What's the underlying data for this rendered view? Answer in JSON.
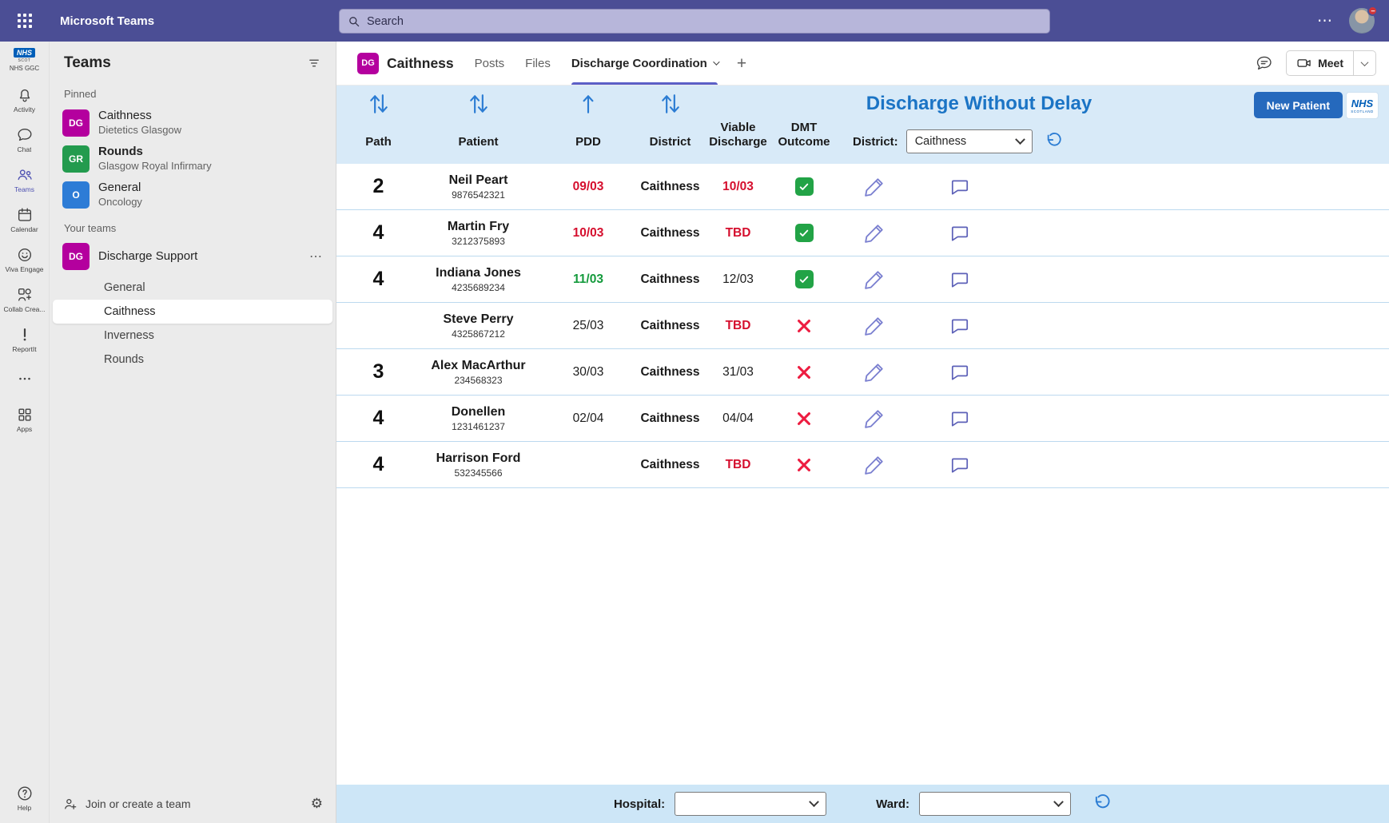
{
  "colors": {
    "teams-purple": "#4b4e95",
    "accent-blue": "#2b7cd3",
    "title-blue": "#1b74c5",
    "nhs-blue": "#005eb8",
    "alert-red": "#d50f2e",
    "ok-green": "#149a3c",
    "check-green": "#22a346",
    "cross-red": "#ed1c40",
    "header-blue": "#d8eaf8",
    "footer-blue": "#cde6f7",
    "row-line-blue": "#bcd9ef",
    "brand-magenta": "#b4009e"
  },
  "icons": {
    "more_horizontal": "⋯",
    "plus": "+",
    "gear": "⚙"
  },
  "topbar": {
    "app_title": "Microsoft Teams",
    "search_placeholder": "Search"
  },
  "rail": {
    "logo": {
      "nhs": "NHS",
      "scot": "SCOT",
      "org": "NHS GGC"
    },
    "items": [
      {
        "id": "activity",
        "label": "Activity",
        "active": false
      },
      {
        "id": "chat",
        "label": "Chat",
        "active": false
      },
      {
        "id": "teams",
        "label": "Teams",
        "active": true
      },
      {
        "id": "calendar",
        "label": "Calendar",
        "active": false
      },
      {
        "id": "viva-engage",
        "label": "Viva Engage",
        "active": false
      },
      {
        "id": "collab",
        "label": "Collab Crea...",
        "active": false
      },
      {
        "id": "reportit",
        "label": "ReportIt",
        "active": false
      },
      {
        "id": "more",
        "label": "",
        "active": false
      },
      {
        "id": "apps",
        "label": "Apps",
        "active": false
      }
    ],
    "help_label": "Help"
  },
  "teams_panel": {
    "title": "Teams",
    "pinned_label": "Pinned",
    "your_teams_label": "Your teams",
    "pinned": [
      {
        "initials": "DG",
        "color": "#b4009e",
        "name": "Caithness",
        "sub": "Dietetics Glasgow",
        "bold": false
      },
      {
        "initials": "GR",
        "color": "#239b4e",
        "name": "Rounds",
        "sub": "Glasgow Royal Infirmary",
        "bold": true
      },
      {
        "initials": "O",
        "color": "#2d7cd6",
        "name": "General",
        "sub": "Oncology",
        "bold": false
      }
    ],
    "team": {
      "initials": "DG",
      "color": "#b4009e",
      "name": "Discharge Support"
    },
    "channels": [
      {
        "label": "General",
        "selected": false
      },
      {
        "label": "Caithness",
        "selected": true
      },
      {
        "label": "Inverness",
        "selected": false
      },
      {
        "label": "Rounds",
        "selected": false
      }
    ],
    "join_label": "Join or create a team"
  },
  "tabbar": {
    "team_initials": "DG",
    "title": "Caithness",
    "tabs": [
      {
        "label": "Posts",
        "active": false
      },
      {
        "label": "Files",
        "active": false
      },
      {
        "label": "Discharge Coordination",
        "active": true
      }
    ],
    "meet_label": "Meet"
  },
  "app": {
    "title": "Discharge Without Delay",
    "new_patient_label": "New Patient",
    "nhs_logo": {
      "nhs": "NHS",
      "sub": "SCOTLAND"
    },
    "district_filter_label": "District:",
    "district_filter_value": "Caithness",
    "columns": [
      "Path",
      "Patient",
      "PDD",
      "District",
      "Viable Discharge",
      "DMT Outcome"
    ],
    "rows": [
      {
        "path": "2",
        "name": "Neil Peart",
        "patient_id": "9876542321",
        "pdd": "09/03",
        "pdd_style": "red",
        "district": "Caithness",
        "viable": "10/03",
        "viable_style": "red",
        "dmt": "check"
      },
      {
        "path": "4",
        "name": "Martin Fry",
        "patient_id": "3212375893",
        "pdd": "10/03",
        "pdd_style": "red",
        "district": "Caithness",
        "viable": "TBD",
        "viable_style": "red",
        "dmt": "check"
      },
      {
        "path": "4",
        "name": "Indiana Jones",
        "patient_id": "4235689234",
        "pdd": "11/03",
        "pdd_style": "green",
        "district": "Caithness",
        "viable": "12/03",
        "viable_style": "normal",
        "dmt": "check"
      },
      {
        "path": "",
        "name": "Steve Perry",
        "patient_id": "4325867212",
        "pdd": "25/03",
        "pdd_style": "normal",
        "district": "Caithness",
        "viable": "TBD",
        "viable_style": "red",
        "dmt": "cross"
      },
      {
        "path": "3",
        "name": "Alex MacArthur",
        "patient_id": "234568323",
        "pdd": "30/03",
        "pdd_style": "normal",
        "district": "Caithness",
        "viable": "31/03",
        "viable_style": "normal",
        "dmt": "cross"
      },
      {
        "path": "4",
        "name": "Donellen",
        "patient_id": "1231461237",
        "pdd": "02/04",
        "pdd_style": "normal",
        "district": "Caithness",
        "viable": "04/04",
        "viable_style": "normal",
        "dmt": "cross"
      },
      {
        "path": "4",
        "name": "Harrison Ford",
        "patient_id": "532345566",
        "pdd": "",
        "pdd_style": "normal",
        "district": "Caithness",
        "viable": "TBD",
        "viable_style": "red",
        "dmt": "cross"
      }
    ],
    "footer": {
      "hospital_label": "Hospital:",
      "ward_label": "Ward:",
      "hospital_value": "",
      "ward_value": ""
    }
  }
}
